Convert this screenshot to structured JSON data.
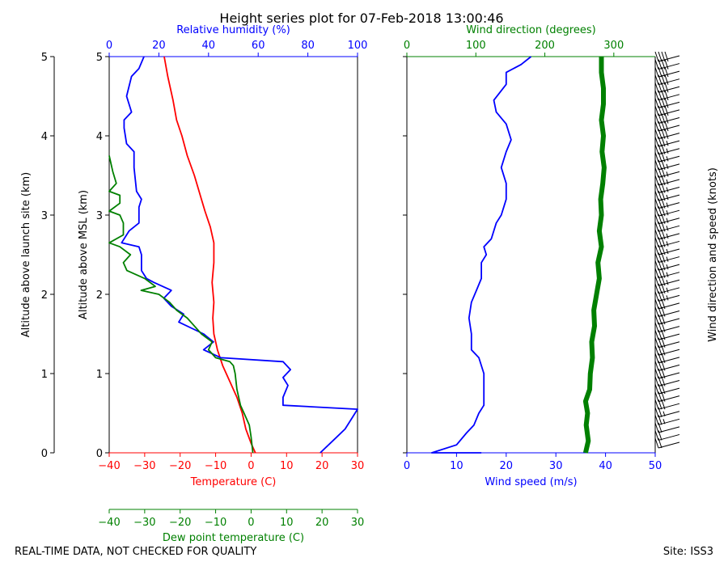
{
  "title": "Height series plot for 07-Feb-2018 13:00:46",
  "footer_left": "REAL-TIME DATA, NOT CHECKED FOR QUALITY",
  "footer_right": "Site: ISS3",
  "colors": {
    "temperature": "#ff0000",
    "humidity": "#0000ff",
    "dewpoint": "#008000",
    "wind_speed": "#0000ff",
    "wind_dir": "#008000",
    "barb": "#000000"
  },
  "chart_data": [
    {
      "type": "line",
      "panel": "thermo",
      "yaxes": [
        {
          "label": "Altitude above launch site (km)",
          "ticks": [
            "0",
            "1",
            "2",
            "3",
            "4",
            "5"
          ],
          "ylim": [
            0,
            5
          ]
        },
        {
          "label": "Altitude above MSL (km)",
          "ticks": [
            "0",
            "1",
            "2",
            "3",
            "4",
            "5"
          ],
          "ylim": [
            0,
            5
          ]
        }
      ],
      "axes": {
        "temperature": {
          "label": "Temperature (C)",
          "ticks": [
            "−40",
            "−30",
            "−20",
            "−10",
            "0",
            "10",
            "20",
            "30"
          ],
          "xlim": [
            -40,
            30
          ]
        },
        "humidity": {
          "label": "Relative humidity (%)",
          "ticks": [
            "0",
            "20",
            "40",
            "60",
            "80",
            "100"
          ],
          "xlim": [
            0,
            100
          ]
        },
        "dewpoint": {
          "label": "Dew point temperature (C)",
          "ticks": [
            "−40",
            "−30",
            "−20",
            "−10",
            "0",
            "10",
            "20",
            "30"
          ],
          "xlim": [
            -40,
            30
          ]
        }
      },
      "series": [
        {
          "key": "temperature",
          "axis": "temperature",
          "width": 1.8,
          "points": [
            [
              1.2,
              0
            ],
            [
              0,
              0.12
            ],
            [
              -1.5,
              0.3
            ],
            [
              -2.5,
              0.5
            ],
            [
              -4,
              0.7
            ],
            [
              -6,
              0.9
            ],
            [
              -8,
              1.1
            ],
            [
              -9.5,
              1.3
            ],
            [
              -10.5,
              1.5
            ],
            [
              -10.8,
              1.7
            ],
            [
              -10.5,
              1.9
            ],
            [
              -11,
              2.15
            ],
            [
              -10.5,
              2.4
            ],
            [
              -10.5,
              2.65
            ],
            [
              -11.5,
              2.85
            ],
            [
              -13,
              3.05
            ],
            [
              -14,
              3.2
            ],
            [
              -16,
              3.5
            ],
            [
              -18,
              3.75
            ],
            [
              -19.5,
              4.0
            ],
            [
              -21,
              4.2
            ],
            [
              -22,
              4.45
            ],
            [
              -23.5,
              4.75
            ],
            [
              -24.5,
              5.0
            ]
          ]
        },
        {
          "key": "humidity",
          "axis": "humidity",
          "width": 1.8,
          "points": [
            [
              85,
              0
            ],
            [
              90,
              0.15
            ],
            [
              95,
              0.3
            ],
            [
              98,
              0.45
            ],
            [
              100,
              0.55
            ],
            [
              70,
              0.6
            ],
            [
              70,
              0.7
            ],
            [
              72,
              0.85
            ],
            [
              70,
              0.95
            ],
            [
              73,
              1.05
            ],
            [
              70,
              1.15
            ],
            [
              45,
              1.2
            ],
            [
              38,
              1.3
            ],
            [
              42,
              1.4
            ],
            [
              38,
              1.5
            ],
            [
              28,
              1.65
            ],
            [
              30,
              1.75
            ],
            [
              25,
              1.85
            ],
            [
              22,
              1.95
            ],
            [
              25,
              2.05
            ],
            [
              18,
              2.15
            ],
            [
              15,
              2.2
            ],
            [
              13,
              2.3
            ],
            [
              13,
              2.5
            ],
            [
              12,
              2.6
            ],
            [
              5,
              2.65
            ],
            [
              8,
              2.8
            ],
            [
              12,
              2.9
            ],
            [
              12,
              3.1
            ],
            [
              13,
              3.2
            ],
            [
              11,
              3.3
            ],
            [
              10,
              3.6
            ],
            [
              10,
              3.8
            ],
            [
              7,
              3.9
            ],
            [
              6,
              4.1
            ],
            [
              6,
              4.2
            ],
            [
              9,
              4.3
            ],
            [
              7,
              4.5
            ],
            [
              9,
              4.75
            ],
            [
              12,
              4.85
            ],
            [
              14,
              5.0
            ]
          ]
        },
        {
          "key": "dewpoint",
          "axis": "dewpoint",
          "width": 1.8,
          "points": [
            [
              0.5,
              0
            ],
            [
              0,
              0.2
            ],
            [
              -0.5,
              0.35
            ],
            [
              -2,
              0.5
            ],
            [
              -3,
              0.6
            ],
            [
              -4,
              0.8
            ],
            [
              -4.5,
              1.0
            ],
            [
              -5,
              1.1
            ],
            [
              -6,
              1.15
            ],
            [
              -10,
              1.2
            ],
            [
              -12,
              1.3
            ],
            [
              -11,
              1.4
            ],
            [
              -14,
              1.5
            ],
            [
              -16,
              1.6
            ],
            [
              -18,
              1.7
            ],
            [
              -21,
              1.8
            ],
            [
              -23,
              1.9
            ],
            [
              -26,
              2.0
            ],
            [
              -31,
              2.05
            ],
            [
              -27,
              2.1
            ],
            [
              -30,
              2.2
            ],
            [
              -35,
              2.3
            ],
            [
              -36,
              2.4
            ],
            [
              -34,
              2.5
            ],
            [
              -37,
              2.6
            ],
            [
              -40,
              2.65
            ],
            [
              -36,
              2.75
            ],
            [
              -36,
              2.9
            ],
            [
              -37,
              3.0
            ],
            [
              -40,
              3.05
            ],
            [
              -37,
              3.15
            ],
            [
              -37,
              3.25
            ],
            [
              -40,
              3.3
            ],
            [
              -38,
              3.4
            ],
            [
              -39,
              3.55
            ],
            [
              -40,
              3.75
            ]
          ]
        }
      ]
    },
    {
      "type": "line",
      "panel": "wind",
      "axes": {
        "wind_speed": {
          "label": "Wind speed (m/s)",
          "ticks": [
            "0",
            "10",
            "20",
            "30",
            "40",
            "50"
          ],
          "xlim": [
            0,
            50
          ]
        },
        "wind_dir": {
          "label": "Wind direction (degrees)",
          "ticks": [
            "0",
            "100",
            "200",
            "300"
          ],
          "xlim": [
            0,
            360
          ]
        }
      },
      "barb_label": "Wind direction and speed (knots)",
      "series": [
        {
          "key": "wind_speed",
          "axis": "wind_speed",
          "width": 1.8,
          "points": [
            [
              15,
              0
            ],
            [
              5,
              0
            ],
            [
              10,
              0.1
            ],
            [
              12,
              0.25
            ],
            [
              13.5,
              0.35
            ],
            [
              14.5,
              0.5
            ],
            [
              15.5,
              0.6
            ],
            [
              15.5,
              0.9
            ],
            [
              15.5,
              1.0
            ],
            [
              14.5,
              1.2
            ],
            [
              13,
              1.3
            ],
            [
              13,
              1.5
            ],
            [
              12.5,
              1.7
            ],
            [
              13,
              1.9
            ],
            [
              14,
              2.05
            ],
            [
              15,
              2.2
            ],
            [
              15,
              2.4
            ],
            [
              16,
              2.5
            ],
            [
              15.5,
              2.6
            ],
            [
              17,
              2.7
            ],
            [
              18,
              2.9
            ],
            [
              19,
              3.0
            ],
            [
              20,
              3.2
            ],
            [
              20,
              3.4
            ],
            [
              19,
              3.6
            ],
            [
              20,
              3.8
            ],
            [
              21,
              3.95
            ],
            [
              20,
              4.15
            ],
            [
              18,
              4.3
            ],
            [
              17.5,
              4.45
            ],
            [
              20,
              4.65
            ],
            [
              20,
              4.8
            ],
            [
              23,
              4.9
            ],
            [
              25,
              5.0
            ]
          ]
        },
        {
          "key": "wind_dir",
          "axis": "wind_dir",
          "width": 6,
          "points": [
            [
              259,
              0
            ],
            [
              263,
              0.15
            ],
            [
              260,
              0.35
            ],
            [
              262,
              0.5
            ],
            [
              259,
              0.65
            ],
            [
              265,
              0.8
            ],
            [
              266,
              1.0
            ],
            [
              269,
              1.2
            ],
            [
              268,
              1.4
            ],
            [
              272,
              1.6
            ],
            [
              271,
              1.8
            ],
            [
              275,
              2.0
            ],
            [
              279,
              2.2
            ],
            [
              277,
              2.4
            ],
            [
              282,
              2.6
            ],
            [
              279,
              2.8
            ],
            [
              282,
              3.0
            ],
            [
              281,
              3.2
            ],
            [
              284,
              3.4
            ],
            [
              286,
              3.6
            ],
            [
              283,
              3.8
            ],
            [
              285,
              4.0
            ],
            [
              282,
              4.2
            ],
            [
              285,
              4.4
            ],
            [
              285,
              4.6
            ],
            [
              282,
              4.8
            ],
            [
              282,
              5.0
            ]
          ]
        }
      ],
      "barbs": {
        "speed_knots": [
          20,
          20,
          20,
          25,
          25,
          30,
          30,
          30,
          30,
          30,
          30,
          30,
          30,
          30,
          30,
          30,
          30,
          30,
          30,
          35,
          35,
          35,
          35,
          35,
          35,
          35,
          35,
          35,
          35,
          35,
          35,
          35,
          35,
          35,
          35,
          35,
          35,
          35,
          35,
          35,
          40,
          40,
          40,
          40,
          40,
          40,
          40,
          40,
          40,
          40,
          40
        ]
      }
    }
  ]
}
